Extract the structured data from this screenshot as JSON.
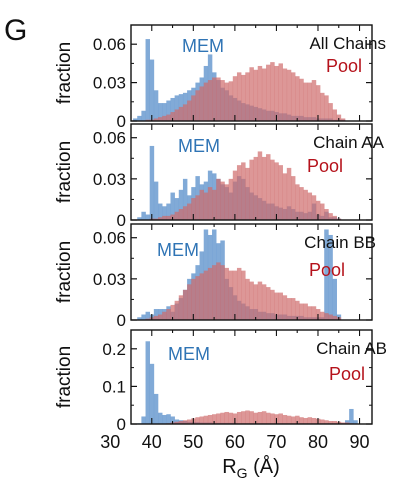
{
  "panel_letter": "G",
  "colors": {
    "mem": "#6b9bd0",
    "pool": "#cf6b6b",
    "mem_text": "#2f74b5",
    "pool_text": "#b5121b",
    "overlap": "#5b5aa0"
  },
  "chart_data": [
    {
      "type": "area",
      "title": "All Chains",
      "ylabel": "fraction",
      "xlabel": "",
      "xlim": [
        35,
        93
      ],
      "ylim": [
        0,
        0.075
      ],
      "yticks": [
        "0",
        "0.03",
        "0.06"
      ],
      "ytick_values": [
        0,
        0.03,
        0.06
      ],
      "series": [
        {
          "name": "MEM",
          "x": [
            36,
            37,
            38,
            39,
            40,
            41,
            42,
            43,
            44,
            45,
            46,
            47,
            48,
            49,
            50,
            51,
            52,
            53,
            54,
            55,
            56,
            57,
            58,
            59,
            60,
            61,
            62,
            63,
            64,
            65,
            66,
            67,
            68,
            69,
            70,
            71,
            72,
            73,
            74,
            75,
            76,
            77,
            78,
            79,
            80,
            81,
            82,
            83,
            84,
            85,
            86,
            87
          ],
          "values": [
            0.002,
            0.004,
            0.008,
            0.064,
            0.048,
            0.024,
            0.014,
            0.014,
            0.016,
            0.018,
            0.02,
            0.021,
            0.022,
            0.024,
            0.026,
            0.03,
            0.034,
            0.043,
            0.052,
            0.038,
            0.032,
            0.026,
            0.024,
            0.02,
            0.018,
            0.016,
            0.014,
            0.013,
            0.012,
            0.011,
            0.01,
            0.009,
            0.008,
            0.008,
            0.007,
            0.006,
            0.006,
            0.005,
            0.004,
            0.004,
            0.004,
            0.003,
            0.003,
            0.003,
            0.002,
            0.002,
            0.002,
            0.002,
            0.001,
            0.001,
            0.001,
            0.0
          ]
        },
        {
          "name": "Pool",
          "x": [
            36,
            37,
            38,
            39,
            40,
            41,
            42,
            43,
            44,
            45,
            46,
            47,
            48,
            49,
            50,
            51,
            52,
            53,
            54,
            55,
            56,
            57,
            58,
            59,
            60,
            61,
            62,
            63,
            64,
            65,
            66,
            67,
            68,
            69,
            70,
            71,
            72,
            73,
            74,
            75,
            76,
            77,
            78,
            79,
            80,
            81,
            82,
            83,
            84,
            85,
            86,
            87
          ],
          "values": [
            0.0,
            0.0,
            0.0,
            0.001,
            0.001,
            0.002,
            0.003,
            0.004,
            0.005,
            0.007,
            0.009,
            0.011,
            0.013,
            0.016,
            0.02,
            0.024,
            0.027,
            0.03,
            0.032,
            0.034,
            0.034,
            0.032,
            0.03,
            0.031,
            0.035,
            0.038,
            0.036,
            0.038,
            0.042,
            0.04,
            0.043,
            0.041,
            0.044,
            0.046,
            0.043,
            0.045,
            0.041,
            0.04,
            0.038,
            0.035,
            0.033,
            0.03,
            0.03,
            0.032,
            0.028,
            0.022,
            0.02,
            0.014,
            0.009,
            0.005,
            0.002,
            0.0
          ]
        }
      ]
    },
    {
      "type": "area",
      "title": "Chain AA",
      "ylabel": "fraction",
      "xlabel": "",
      "xlim": [
        35,
        93
      ],
      "ylim": [
        0,
        0.07
      ],
      "yticks": [
        "0",
        "0.03",
        "0.06"
      ],
      "ytick_values": [
        0,
        0.03,
        0.06
      ],
      "series": [
        {
          "name": "MEM",
          "x": [
            36,
            37,
            38,
            39,
            40,
            41,
            42,
            43,
            44,
            45,
            46,
            47,
            48,
            49,
            50,
            51,
            52,
            53,
            54,
            55,
            56,
            57,
            58,
            59,
            60,
            61,
            62,
            63,
            64,
            65,
            66,
            67,
            68,
            69,
            70,
            71,
            72,
            73,
            74,
            75,
            76,
            77,
            78,
            79,
            80,
            81,
            82,
            83,
            84,
            85,
            86,
            87
          ],
          "values": [
            0.0,
            0.002,
            0.006,
            0.004,
            0.054,
            0.028,
            0.012,
            0.01,
            0.012,
            0.02,
            0.016,
            0.022,
            0.03,
            0.018,
            0.024,
            0.032,
            0.026,
            0.028,
            0.036,
            0.034,
            0.03,
            0.026,
            0.024,
            0.02,
            0.028,
            0.032,
            0.03,
            0.024,
            0.02,
            0.018,
            0.016,
            0.014,
            0.012,
            0.012,
            0.01,
            0.009,
            0.008,
            0.01,
            0.008,
            0.006,
            0.006,
            0.005,
            0.006,
            0.012,
            0.004,
            0.003,
            0.006,
            0.002,
            0.002,
            0.001,
            0.0,
            0.0
          ]
        },
        {
          "name": "Pool",
          "x": [
            36,
            37,
            38,
            39,
            40,
            41,
            42,
            43,
            44,
            45,
            46,
            47,
            48,
            49,
            50,
            51,
            52,
            53,
            54,
            55,
            56,
            57,
            58,
            59,
            60,
            61,
            62,
            63,
            64,
            65,
            66,
            67,
            68,
            69,
            70,
            71,
            72,
            73,
            74,
            75,
            76,
            77,
            78,
            79,
            80,
            81,
            82,
            83,
            84,
            85,
            86,
            87
          ],
          "values": [
            0.0,
            0.0,
            0.0,
            0.0,
            0.001,
            0.001,
            0.002,
            0.003,
            0.003,
            0.004,
            0.006,
            0.008,
            0.01,
            0.012,
            0.016,
            0.018,
            0.022,
            0.02,
            0.024,
            0.022,
            0.03,
            0.028,
            0.026,
            0.03,
            0.036,
            0.04,
            0.042,
            0.038,
            0.044,
            0.046,
            0.05,
            0.046,
            0.048,
            0.044,
            0.042,
            0.04,
            0.034,
            0.038,
            0.032,
            0.026,
            0.024,
            0.022,
            0.02,
            0.018,
            0.014,
            0.012,
            0.008,
            0.005,
            0.003,
            0.001,
            0.0,
            0.0
          ]
        }
      ]
    },
    {
      "type": "area",
      "title": "Chain BB",
      "ylabel": "fraction",
      "xlabel": "",
      "xlim": [
        35,
        93
      ],
      "ylim": [
        0,
        0.07
      ],
      "yticks": [
        "0",
        "0.03",
        "0.06"
      ],
      "ytick_values": [
        0,
        0.03,
        0.06
      ],
      "series": [
        {
          "name": "MEM",
          "x": [
            36,
            37,
            38,
            39,
            40,
            41,
            42,
            43,
            44,
            45,
            46,
            47,
            48,
            49,
            50,
            51,
            52,
            53,
            54,
            55,
            56,
            57,
            58,
            59,
            60,
            61,
            62,
            63,
            64,
            65,
            66,
            67,
            68,
            69,
            70,
            71,
            72,
            73,
            74,
            75,
            76,
            77,
            78,
            79,
            80,
            81,
            82,
            83,
            84,
            85,
            86,
            87
          ],
          "values": [
            0.0,
            0.002,
            0.004,
            0.006,
            0.004,
            0.008,
            0.008,
            0.008,
            0.01,
            0.006,
            0.012,
            0.016,
            0.022,
            0.03,
            0.034,
            0.04,
            0.05,
            0.066,
            0.062,
            0.066,
            0.056,
            0.058,
            0.03,
            0.024,
            0.018,
            0.014,
            0.012,
            0.01,
            0.008,
            0.008,
            0.006,
            0.006,
            0.005,
            0.005,
            0.004,
            0.004,
            0.004,
            0.003,
            0.003,
            0.003,
            0.003,
            0.002,
            0.002,
            0.002,
            0.002,
            0.002,
            0.066,
            0.062,
            0.03,
            0.004,
            0.0,
            0.0
          ]
        },
        {
          "name": "Pool",
          "x": [
            36,
            37,
            38,
            39,
            40,
            41,
            42,
            43,
            44,
            45,
            46,
            47,
            48,
            49,
            50,
            51,
            52,
            53,
            54,
            55,
            56,
            57,
            58,
            59,
            60,
            61,
            62,
            63,
            64,
            65,
            66,
            67,
            68,
            69,
            70,
            71,
            72,
            73,
            74,
            75,
            76,
            77,
            78,
            79,
            80,
            81,
            82,
            83,
            84,
            85,
            86,
            87
          ],
          "values": [
            0.0,
            0.0,
            0.0,
            0.001,
            0.002,
            0.003,
            0.004,
            0.006,
            0.008,
            0.011,
            0.014,
            0.018,
            0.022,
            0.026,
            0.03,
            0.032,
            0.034,
            0.036,
            0.038,
            0.04,
            0.042,
            0.04,
            0.038,
            0.036,
            0.036,
            0.038,
            0.036,
            0.03,
            0.028,
            0.026,
            0.028,
            0.026,
            0.024,
            0.022,
            0.02,
            0.02,
            0.018,
            0.016,
            0.016,
            0.014,
            0.012,
            0.012,
            0.01,
            0.01,
            0.008,
            0.006,
            0.005,
            0.004,
            0.003,
            0.002,
            0.0,
            0.0
          ]
        }
      ]
    },
    {
      "type": "area",
      "title": "Chain AB",
      "ylabel": "fraction",
      "xlabel": "R_G (Å)",
      "xlim": [
        35,
        93
      ],
      "ylim": [
        0,
        0.25
      ],
      "yticks": [
        "0",
        "0.1",
        "0.2"
      ],
      "ytick_values": [
        0,
        0.1,
        0.2
      ],
      "xticks": [
        "30",
        "40",
        "50",
        "60",
        "70",
        "80",
        "90"
      ],
      "xtick_values": [
        30,
        40,
        50,
        60,
        70,
        80,
        90
      ],
      "series": [
        {
          "name": "MEM",
          "x": [
            36,
            37,
            38,
            39,
            40,
            41,
            42,
            43,
            44,
            45,
            46,
            47,
            48,
            49,
            50,
            51,
            52,
            53,
            54,
            55,
            56,
            57,
            58,
            59,
            60,
            61,
            62,
            63,
            64,
            65,
            66,
            67,
            68,
            69,
            70,
            71,
            72,
            73,
            74,
            75,
            76,
            77,
            78,
            79,
            80,
            81,
            82,
            83,
            84,
            85,
            86,
            87,
            88,
            89,
            90
          ],
          "values": [
            0.0,
            0.002,
            0.02,
            0.22,
            0.16,
            0.08,
            0.03,
            0.024,
            0.026,
            0.02,
            0.012,
            0.01,
            0.008,
            0.006,
            0.005,
            0.005,
            0.004,
            0.004,
            0.004,
            0.003,
            0.003,
            0.003,
            0.003,
            0.003,
            0.003,
            0.002,
            0.002,
            0.002,
            0.002,
            0.002,
            0.002,
            0.002,
            0.002,
            0.002,
            0.002,
            0.002,
            0.002,
            0.002,
            0.002,
            0.002,
            0.002,
            0.002,
            0.002,
            0.002,
            0.002,
            0.002,
            0.002,
            0.002,
            0.002,
            0.002,
            0.002,
            0.01,
            0.04,
            0.01,
            0.0
          ]
        },
        {
          "name": "Pool",
          "x": [
            36,
            37,
            38,
            39,
            40,
            41,
            42,
            43,
            44,
            45,
            46,
            47,
            48,
            49,
            50,
            51,
            52,
            53,
            54,
            55,
            56,
            57,
            58,
            59,
            60,
            61,
            62,
            63,
            64,
            65,
            66,
            67,
            68,
            69,
            70,
            71,
            72,
            73,
            74,
            75,
            76,
            77,
            78,
            79,
            80,
            81,
            82,
            83,
            84,
            85,
            86,
            87,
            88,
            89,
            90
          ],
          "values": [
            0.0,
            0.0,
            0.0,
            0.0,
            0.0,
            0.0,
            0.0,
            0.001,
            0.002,
            0.004,
            0.006,
            0.008,
            0.01,
            0.012,
            0.015,
            0.018,
            0.02,
            0.022,
            0.024,
            0.026,
            0.028,
            0.03,
            0.032,
            0.03,
            0.028,
            0.032,
            0.034,
            0.036,
            0.034,
            0.03,
            0.032,
            0.034,
            0.03,
            0.028,
            0.026,
            0.028,
            0.024,
            0.022,
            0.02,
            0.022,
            0.018,
            0.016,
            0.018,
            0.016,
            0.014,
            0.012,
            0.01,
            0.008,
            0.008,
            0.006,
            0.004,
            0.004,
            0.002,
            0.001,
            0.0
          ]
        }
      ]
    }
  ]
}
